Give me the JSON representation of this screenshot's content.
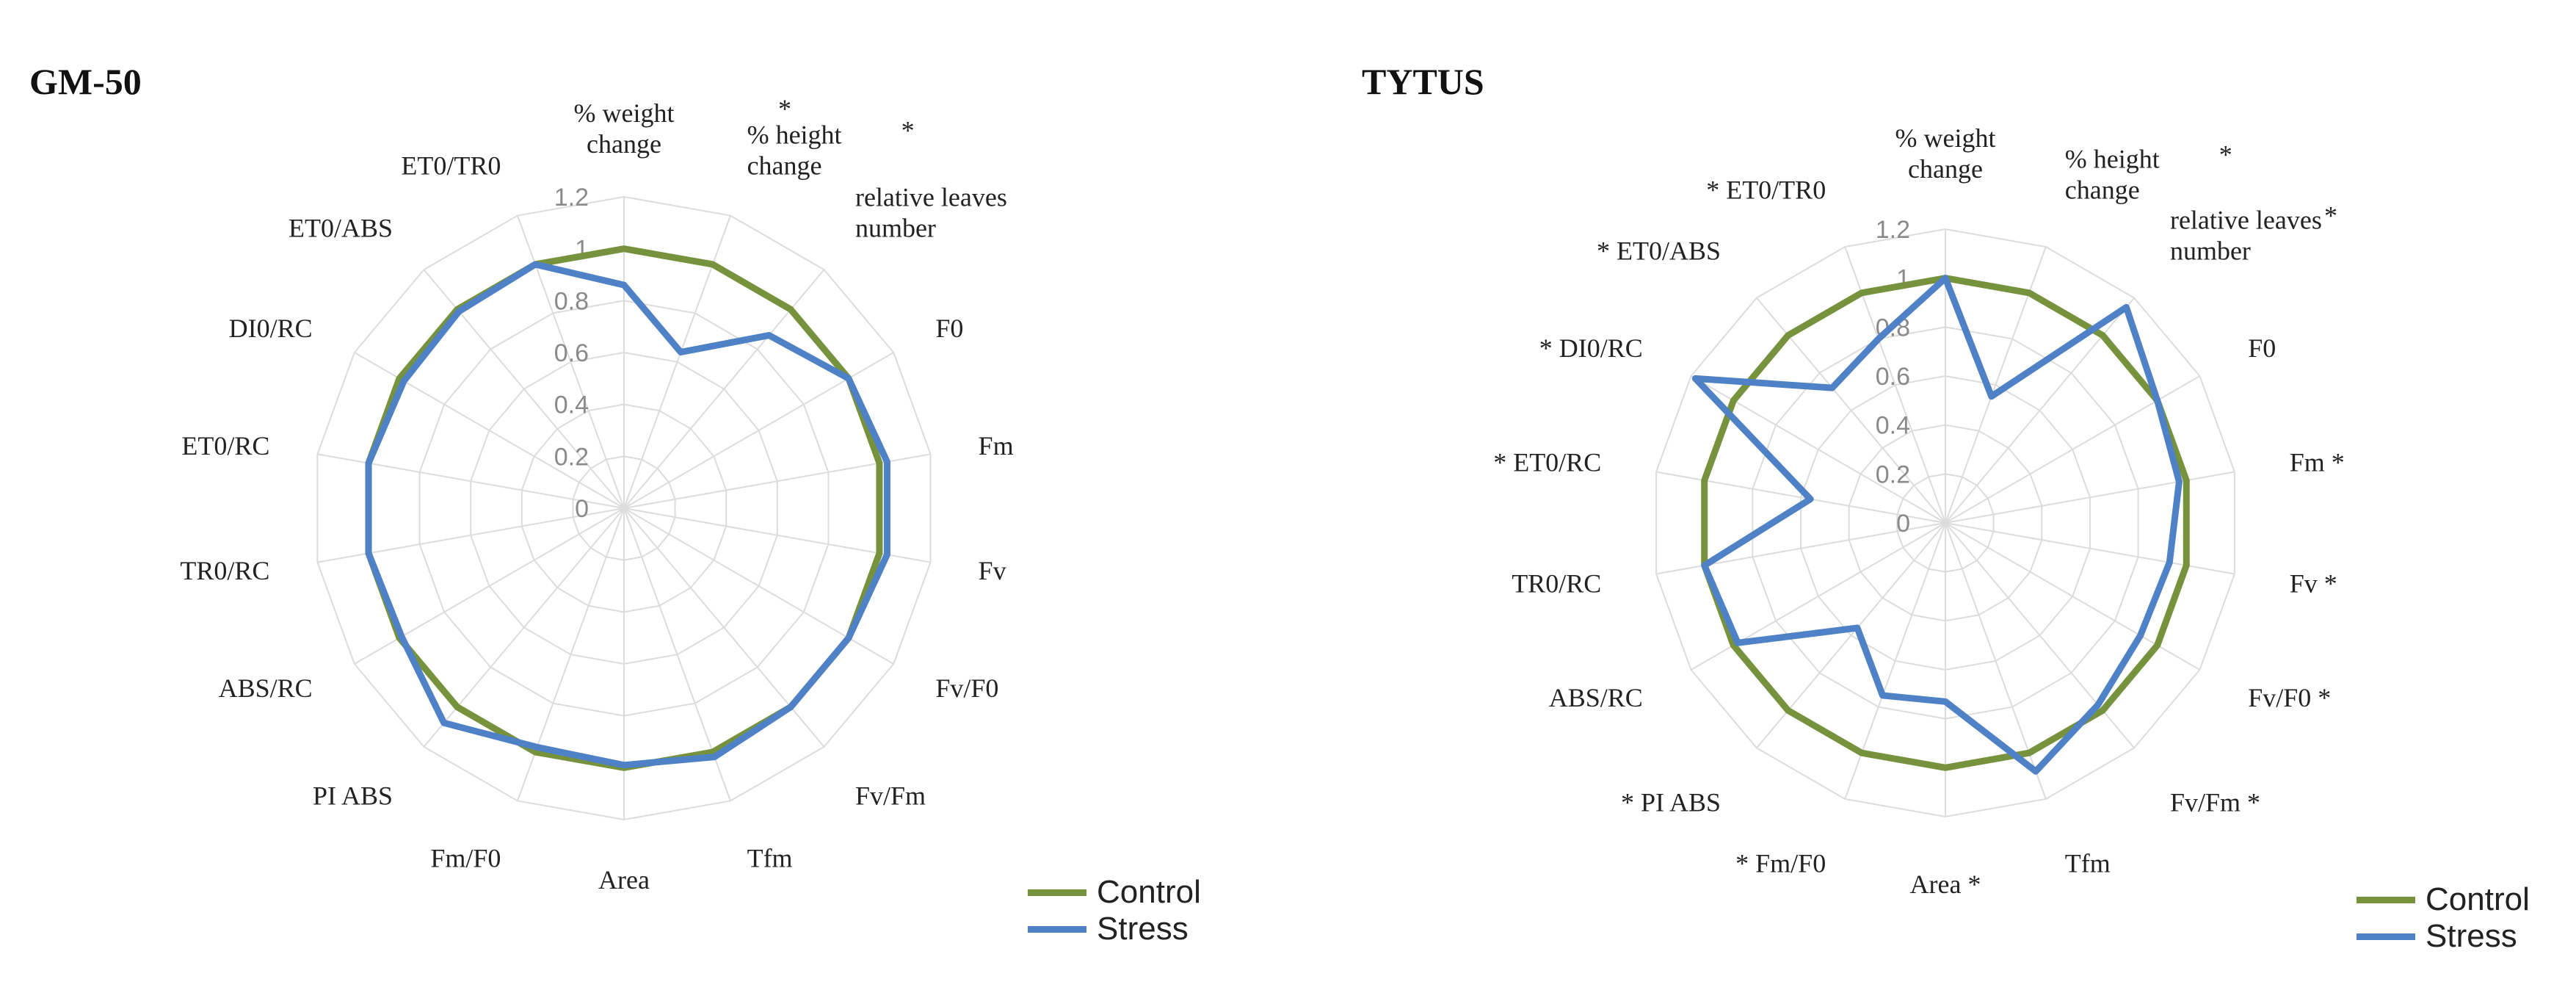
{
  "chart_data": [
    {
      "type": "radar",
      "title": "GM-50",
      "axes": [
        {
          "name": "% weight change",
          "lines": [
            "% weight",
            "change"
          ],
          "mark": "*"
        },
        {
          "name": "% height change",
          "lines": [
            "% height",
            "change"
          ],
          "mark": "*"
        },
        {
          "name": "relative leaves number",
          "lines": [
            "relative leaves",
            "number"
          ],
          "mark": ""
        },
        {
          "name": "F0",
          "lines": [
            "F0"
          ],
          "mark": ""
        },
        {
          "name": "Fm",
          "lines": [
            "Fm"
          ],
          "mark": ""
        },
        {
          "name": "Fv",
          "lines": [
            "Fv"
          ],
          "mark": ""
        },
        {
          "name": "Fv/F0",
          "lines": [
            "Fv/F0"
          ],
          "mark": ""
        },
        {
          "name": "Fv/Fm",
          "lines": [
            "Fv/Fm"
          ],
          "mark": ""
        },
        {
          "name": "Tfm",
          "lines": [
            "Tfm"
          ],
          "mark": ""
        },
        {
          "name": "Area",
          "lines": [
            "Area"
          ],
          "mark": ""
        },
        {
          "name": "Fm/F0",
          "lines": [
            "Fm/F0"
          ],
          "mark": ""
        },
        {
          "name": "PI ABS",
          "lines": [
            "PI ABS"
          ],
          "mark": ""
        },
        {
          "name": "ABS/RC",
          "lines": [
            "ABS/RC"
          ],
          "mark": ""
        },
        {
          "name": "TR0/RC",
          "lines": [
            "TR0/RC"
          ],
          "mark": ""
        },
        {
          "name": "ET0/RC",
          "lines": [
            "ET0/RC"
          ],
          "mark": ""
        },
        {
          "name": "DI0/RC",
          "lines": [
            "DI0/RC"
          ],
          "mark": ""
        },
        {
          "name": "ET0/ABS",
          "lines": [
            "ET0/ABS"
          ],
          "mark": ""
        },
        {
          "name": "ET0/TR0",
          "lines": [
            "ET0/TR0"
          ],
          "mark": ""
        }
      ],
      "ticks": [
        "0",
        "0.2",
        "0.4",
        "0.6",
        "0.8",
        "1",
        "1.2"
      ],
      "rlim": [
        0,
        1.2
      ],
      "series": [
        {
          "name": "Control",
          "color": "#76923c",
          "values": [
            1,
            1,
            1,
            1,
            1,
            1,
            1,
            1,
            1,
            1,
            1,
            1,
            1,
            1,
            1,
            1,
            1,
            1
          ]
        },
        {
          "name": "Stress",
          "color": "#4f81c7",
          "values": [
            0.86,
            0.64,
            0.87,
            1.0,
            1.03,
            1.03,
            1.0,
            1.0,
            1.02,
            0.99,
            0.98,
            1.08,
            0.99,
            1.0,
            1.0,
            0.98,
            0.99,
            1.0
          ]
        }
      ],
      "legend": "bottom-right"
    },
    {
      "type": "radar",
      "title": "TYTUS",
      "axes": [
        {
          "name": "% weight change",
          "lines": [
            "% weight",
            "change"
          ],
          "mark": ""
        },
        {
          "name": "% height change",
          "lines": [
            "% height",
            "change"
          ],
          "mark": "*"
        },
        {
          "name": "relative leaves number",
          "lines": [
            "relative leaves",
            "number"
          ],
          "mark": "*"
        },
        {
          "name": "F0",
          "lines": [
            "F0"
          ],
          "mark": ""
        },
        {
          "name": "Fm",
          "lines": [
            "Fm *"
          ],
          "mark": ""
        },
        {
          "name": "Fv",
          "lines": [
            "Fv *"
          ],
          "mark": ""
        },
        {
          "name": "Fv/F0",
          "lines": [
            "Fv/F0 *"
          ],
          "mark": ""
        },
        {
          "name": "Fv/Fm",
          "lines": [
            "Fv/Fm *"
          ],
          "mark": ""
        },
        {
          "name": "Tfm",
          "lines": [
            "Tfm"
          ],
          "mark": ""
        },
        {
          "name": "Area",
          "lines": [
            "Area *"
          ],
          "mark": ""
        },
        {
          "name": "Fm/F0",
          "lines": [
            "* Fm/F0"
          ],
          "mark": ""
        },
        {
          "name": "PI ABS",
          "lines": [
            "* PI ABS"
          ],
          "mark": ""
        },
        {
          "name": "ABS/RC",
          "lines": [
            "ABS/RC"
          ],
          "mark": ""
        },
        {
          "name": "TR0/RC",
          "lines": [
            "TR0/RC"
          ],
          "mark": ""
        },
        {
          "name": "ET0/RC",
          "lines": [
            "* ET0/RC"
          ],
          "mark": ""
        },
        {
          "name": "DI0/RC",
          "lines": [
            "* DI0/RC"
          ],
          "mark": ""
        },
        {
          "name": "ET0/ABS",
          "lines": [
            "* ET0/ABS"
          ],
          "mark": ""
        },
        {
          "name": "ET0/TR0",
          "lines": [
            "* ET0/TR0"
          ],
          "mark": ""
        }
      ],
      "ticks": [
        "0",
        "0.2",
        "0.4",
        "0.6",
        "0.8",
        "1",
        "1.2"
      ],
      "rlim": [
        0,
        1.2
      ],
      "series": [
        {
          "name": "Control",
          "color": "#76923c",
          "values": [
            1,
            1,
            1,
            1,
            1,
            1,
            1,
            1,
            1,
            1,
            1,
            1,
            1,
            1,
            1,
            1,
            1,
            1
          ]
        },
        {
          "name": "Stress",
          "color": "#4f81c7",
          "values": [
            1.0,
            0.55,
            1.15,
            1.0,
            0.97,
            0.93,
            0.92,
            0.97,
            1.08,
            0.73,
            0.75,
            0.56,
            0.98,
            1.0,
            0.56,
            1.18,
            0.72,
            0.8
          ]
        }
      ],
      "legend": "bottom-right"
    }
  ]
}
